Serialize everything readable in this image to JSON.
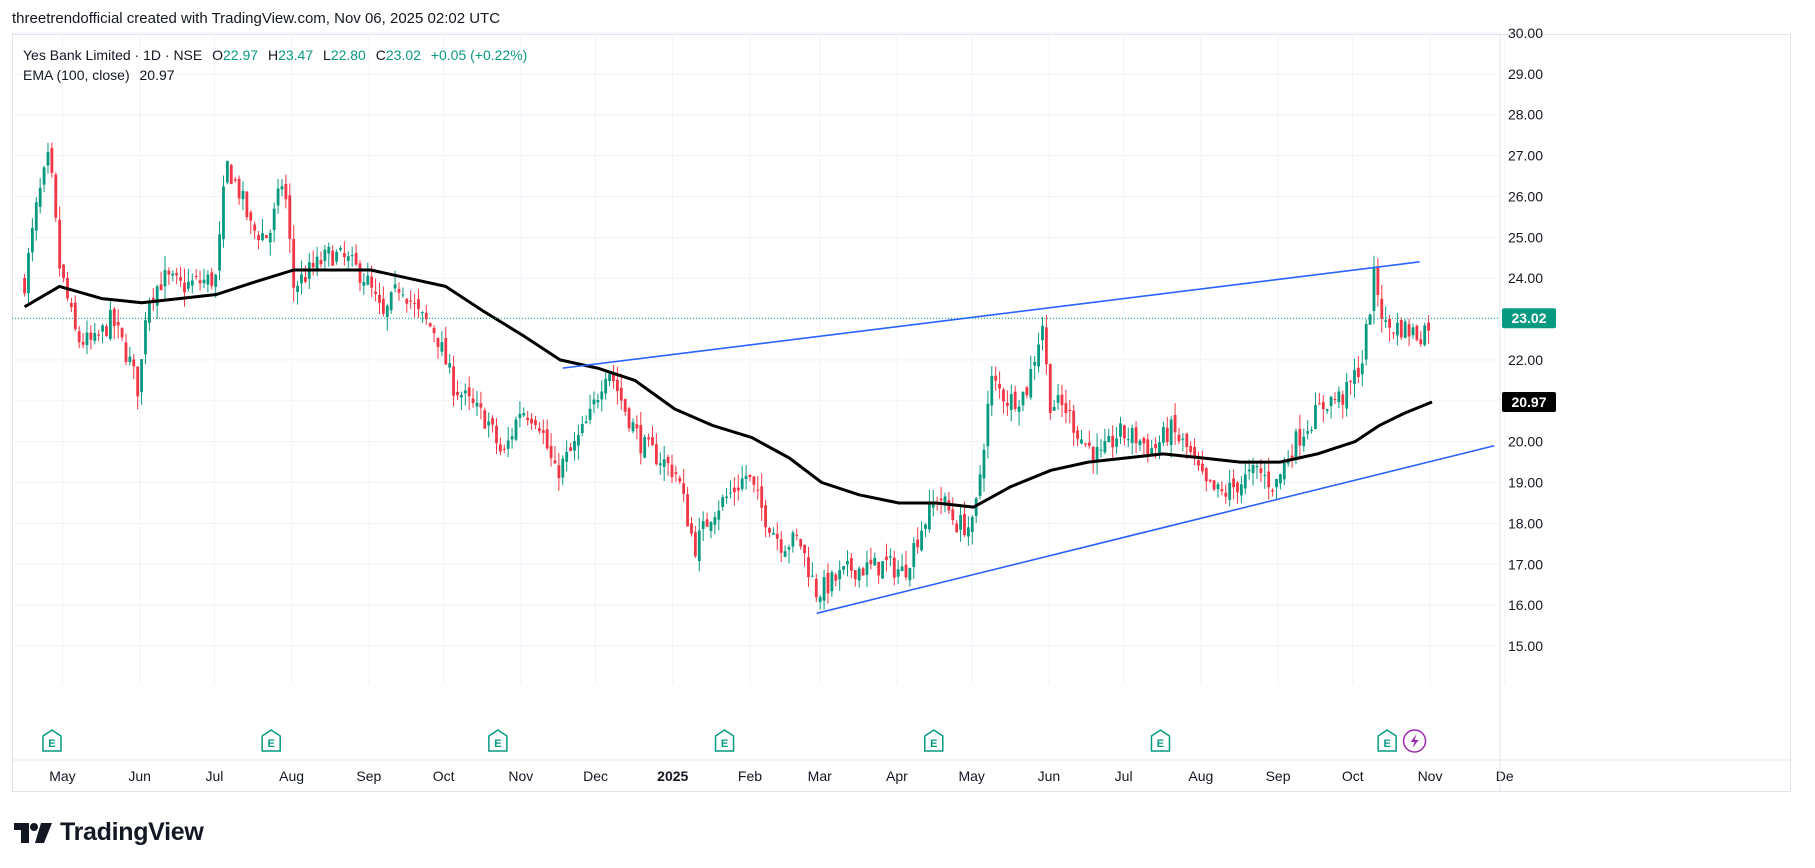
{
  "header": {
    "attribution": "threetrendofficial created with TradingView.com, Nov 06, 2025 02:02 UTC"
  },
  "legend": {
    "symbol": "Yes Bank Limited · 1D · NSE",
    "o_label": "O",
    "o_value": "22.97",
    "h_label": "H",
    "h_value": "23.47",
    "l_label": "L",
    "l_value": "22.80",
    "c_label": "C",
    "c_value": "23.02",
    "change": "+0.05 (+0.22%)",
    "ema_label": "EMA (100, close)",
    "ema_value": "20.97"
  },
  "brand": {
    "name": "TradingView"
  },
  "colors": {
    "up": "#089981",
    "down": "#f23645",
    "ema": "#000000",
    "trendline": "#2962ff",
    "grid": "#f0f3fa",
    "axis_text": "#131722",
    "event_icon": "#089981",
    "event_flash": "#9c27b0"
  },
  "chart_data": {
    "type": "candlestick",
    "title": "Yes Bank Limited · 1D · NSE",
    "ylim": [
      15,
      30
    ],
    "y_ticks": [
      "30.00",
      "29.00",
      "28.00",
      "27.00",
      "26.00",
      "25.00",
      "24.00",
      "23.00",
      "22.00",
      "21.00",
      "20.00",
      "19.00",
      "18.00",
      "17.00",
      "16.00",
      "15.00"
    ],
    "x_ticks": [
      "May",
      "Jun",
      "Jul",
      "Aug",
      "Sep",
      "Oct",
      "Nov",
      "Dec",
      "2025",
      "Feb",
      "Mar",
      "Apr",
      "May",
      "Jun",
      "Jul",
      "Aug",
      "Sep",
      "Oct",
      "Nov",
      "De"
    ],
    "x_ticks_bold": [
      "2025"
    ],
    "last_price": {
      "value": 23.02,
      "label": "23.02"
    },
    "ema_badge": {
      "value": 20.97,
      "label": "20.97"
    },
    "price_path": [
      {
        "date": "2024-04-19",
        "close": 23.9
      },
      {
        "date": "2024-04-24",
        "close": 25.8
      },
      {
        "date": "2024-04-29",
        "close": 27.0
      },
      {
        "date": "2024-05-03",
        "close": 24.3
      },
      {
        "date": "2024-05-10",
        "close": 22.5
      },
      {
        "date": "2024-05-17",
        "close": 22.4
      },
      {
        "date": "2024-05-24",
        "close": 23.0
      },
      {
        "date": "2024-05-31",
        "close": 22.0
      },
      {
        "date": "2024-06-04",
        "close": 21.2
      },
      {
        "date": "2024-06-07",
        "close": 23.5
      },
      {
        "date": "2024-06-14",
        "close": 24.0
      },
      {
        "date": "2024-06-21",
        "close": 23.8
      },
      {
        "date": "2024-06-28",
        "close": 23.9
      },
      {
        "date": "2024-07-05",
        "close": 24.0
      },
      {
        "date": "2024-07-09",
        "close": 26.8
      },
      {
        "date": "2024-07-15",
        "close": 26.0
      },
      {
        "date": "2024-07-19",
        "close": 25.2
      },
      {
        "date": "2024-07-26",
        "close": 25.0
      },
      {
        "date": "2024-08-01",
        "close": 26.5
      },
      {
        "date": "2024-08-05",
        "close": 23.8
      },
      {
        "date": "2024-08-12",
        "close": 24.2
      },
      {
        "date": "2024-08-20",
        "close": 24.6
      },
      {
        "date": "2024-08-27",
        "close": 24.4
      },
      {
        "date": "2024-09-03",
        "close": 24.0
      },
      {
        "date": "2024-09-10",
        "close": 23.0
      },
      {
        "date": "2024-09-17",
        "close": 23.9
      },
      {
        "date": "2024-09-24",
        "close": 23.1
      },
      {
        "date": "2024-10-01",
        "close": 22.7
      },
      {
        "date": "2024-10-08",
        "close": 21.4
      },
      {
        "date": "2024-10-15",
        "close": 20.9
      },
      {
        "date": "2024-10-22",
        "close": 20.5
      },
      {
        "date": "2024-10-28",
        "close": 19.6
      },
      {
        "date": "2024-11-04",
        "close": 20.8
      },
      {
        "date": "2024-11-11",
        "close": 20.6
      },
      {
        "date": "2024-11-18",
        "close": 19.2
      },
      {
        "date": "2024-11-25",
        "close": 19.8
      },
      {
        "date": "2024-12-02",
        "close": 20.6
      },
      {
        "date": "2024-12-09",
        "close": 21.9
      },
      {
        "date": "2024-12-16",
        "close": 20.8
      },
      {
        "date": "2024-12-23",
        "close": 19.9
      },
      {
        "date": "2024-12-30",
        "close": 19.6
      },
      {
        "date": "2025-01-06",
        "close": 19.2
      },
      {
        "date": "2025-01-13",
        "close": 17.4
      },
      {
        "date": "2025-01-20",
        "close": 18.3
      },
      {
        "date": "2025-01-27",
        "close": 18.7
      },
      {
        "date": "2025-02-03",
        "close": 19.2
      },
      {
        "date": "2025-02-10",
        "close": 18.2
      },
      {
        "date": "2025-02-17",
        "close": 17.5
      },
      {
        "date": "2025-02-24",
        "close": 17.6
      },
      {
        "date": "2025-03-03",
        "close": 16.3
      },
      {
        "date": "2025-03-10",
        "close": 16.6
      },
      {
        "date": "2025-03-17",
        "close": 16.9
      },
      {
        "date": "2025-03-24",
        "close": 16.9
      },
      {
        "date": "2025-03-31",
        "close": 17.0
      },
      {
        "date": "2025-04-07",
        "close": 16.8
      },
      {
        "date": "2025-04-14",
        "close": 17.9
      },
      {
        "date": "2025-04-21",
        "close": 18.7
      },
      {
        "date": "2025-04-28",
        "close": 18.0
      },
      {
        "date": "2025-05-05",
        "close": 17.9
      },
      {
        "date": "2025-05-12",
        "close": 21.5
      },
      {
        "date": "2025-05-19",
        "close": 21.0
      },
      {
        "date": "2025-05-26",
        "close": 21.2
      },
      {
        "date": "2025-06-02",
        "close": 23.0
      },
      {
        "date": "2025-06-04",
        "close": 21.0
      },
      {
        "date": "2025-06-11",
        "close": 20.8
      },
      {
        "date": "2025-06-18",
        "close": 20.0
      },
      {
        "date": "2025-06-25",
        "close": 19.6
      },
      {
        "date": "2025-07-02",
        "close": 20.2
      },
      {
        "date": "2025-07-09",
        "close": 20.1
      },
      {
        "date": "2025-07-16",
        "close": 19.8
      },
      {
        "date": "2025-07-23",
        "close": 20.3
      },
      {
        "date": "2025-07-30",
        "close": 19.8
      },
      {
        "date": "2025-08-06",
        "close": 18.9
      },
      {
        "date": "2025-08-13",
        "close": 18.7
      },
      {
        "date": "2025-08-20",
        "close": 19.0
      },
      {
        "date": "2025-08-27",
        "close": 19.3
      },
      {
        "date": "2025-09-03",
        "close": 18.9
      },
      {
        "date": "2025-09-10",
        "close": 19.9
      },
      {
        "date": "2025-09-17",
        "close": 20.5
      },
      {
        "date": "2025-09-24",
        "close": 21.0
      },
      {
        "date": "2025-10-01",
        "close": 21.1
      },
      {
        "date": "2025-10-08",
        "close": 22.0
      },
      {
        "date": "2025-10-13",
        "close": 24.1
      },
      {
        "date": "2025-10-17",
        "close": 22.8
      },
      {
        "date": "2025-10-24",
        "close": 22.8
      },
      {
        "date": "2025-10-31",
        "close": 22.6
      },
      {
        "date": "2025-11-05",
        "close": 23.02
      }
    ],
    "ema_series": [
      {
        "date": "2024-04-19",
        "value": 23.3
      },
      {
        "date": "2024-05-03",
        "value": 23.8
      },
      {
        "date": "2024-05-20",
        "value": 23.5
      },
      {
        "date": "2024-06-05",
        "value": 23.4
      },
      {
        "date": "2024-06-20",
        "value": 23.5
      },
      {
        "date": "2024-07-05",
        "value": 23.6
      },
      {
        "date": "2024-07-20",
        "value": 23.9
      },
      {
        "date": "2024-08-05",
        "value": 24.2
      },
      {
        "date": "2024-08-20",
        "value": 24.2
      },
      {
        "date": "2024-09-05",
        "value": 24.2
      },
      {
        "date": "2024-09-20",
        "value": 24.0
      },
      {
        "date": "2024-10-05",
        "value": 23.8
      },
      {
        "date": "2024-10-20",
        "value": 23.2
      },
      {
        "date": "2024-11-05",
        "value": 22.6
      },
      {
        "date": "2024-11-20",
        "value": 22.0
      },
      {
        "date": "2024-12-05",
        "value": 21.8
      },
      {
        "date": "2024-12-20",
        "value": 21.5
      },
      {
        "date": "2025-01-05",
        "value": 20.8
      },
      {
        "date": "2025-01-20",
        "value": 20.4
      },
      {
        "date": "2025-02-05",
        "value": 20.1
      },
      {
        "date": "2025-02-20",
        "value": 19.6
      },
      {
        "date": "2025-03-05",
        "value": 19.0
      },
      {
        "date": "2025-03-20",
        "value": 18.7
      },
      {
        "date": "2025-04-05",
        "value": 18.5
      },
      {
        "date": "2025-04-20",
        "value": 18.5
      },
      {
        "date": "2025-05-05",
        "value": 18.4
      },
      {
        "date": "2025-05-20",
        "value": 18.9
      },
      {
        "date": "2025-06-05",
        "value": 19.3
      },
      {
        "date": "2025-06-20",
        "value": 19.5
      },
      {
        "date": "2025-07-05",
        "value": 19.6
      },
      {
        "date": "2025-07-20",
        "value": 19.7
      },
      {
        "date": "2025-08-05",
        "value": 19.6
      },
      {
        "date": "2025-08-20",
        "value": 19.5
      },
      {
        "date": "2025-09-05",
        "value": 19.5
      },
      {
        "date": "2025-09-20",
        "value": 19.7
      },
      {
        "date": "2025-10-05",
        "value": 20.0
      },
      {
        "date": "2025-10-15",
        "value": 20.4
      },
      {
        "date": "2025-10-25",
        "value": 20.7
      },
      {
        "date": "2025-11-05",
        "value": 20.97
      }
    ],
    "trendlines": [
      {
        "name": "upper",
        "from": {
          "date": "2024-11-21",
          "value": 21.8
        },
        "to": {
          "date": "2025-10-31",
          "value": 24.4
        }
      },
      {
        "name": "lower",
        "from": {
          "date": "2025-03-03",
          "value": 15.8
        },
        "to": {
          "date": "2025-11-30",
          "value": 19.9
        }
      }
    ],
    "events": [
      {
        "date": "2024-04-30",
        "type": "earnings",
        "label": "E"
      },
      {
        "date": "2024-07-27",
        "type": "earnings",
        "label": "E"
      },
      {
        "date": "2024-10-26",
        "type": "earnings",
        "label": "E"
      },
      {
        "date": "2025-01-25",
        "type": "earnings",
        "label": "E"
      },
      {
        "date": "2025-04-19",
        "type": "earnings",
        "label": "E"
      },
      {
        "date": "2025-07-19",
        "type": "earnings",
        "label": "E"
      },
      {
        "date": "2025-10-18",
        "type": "earnings",
        "label": "E"
      },
      {
        "date": "2025-10-29",
        "type": "flash",
        "label": ""
      }
    ],
    "grid": true
  }
}
